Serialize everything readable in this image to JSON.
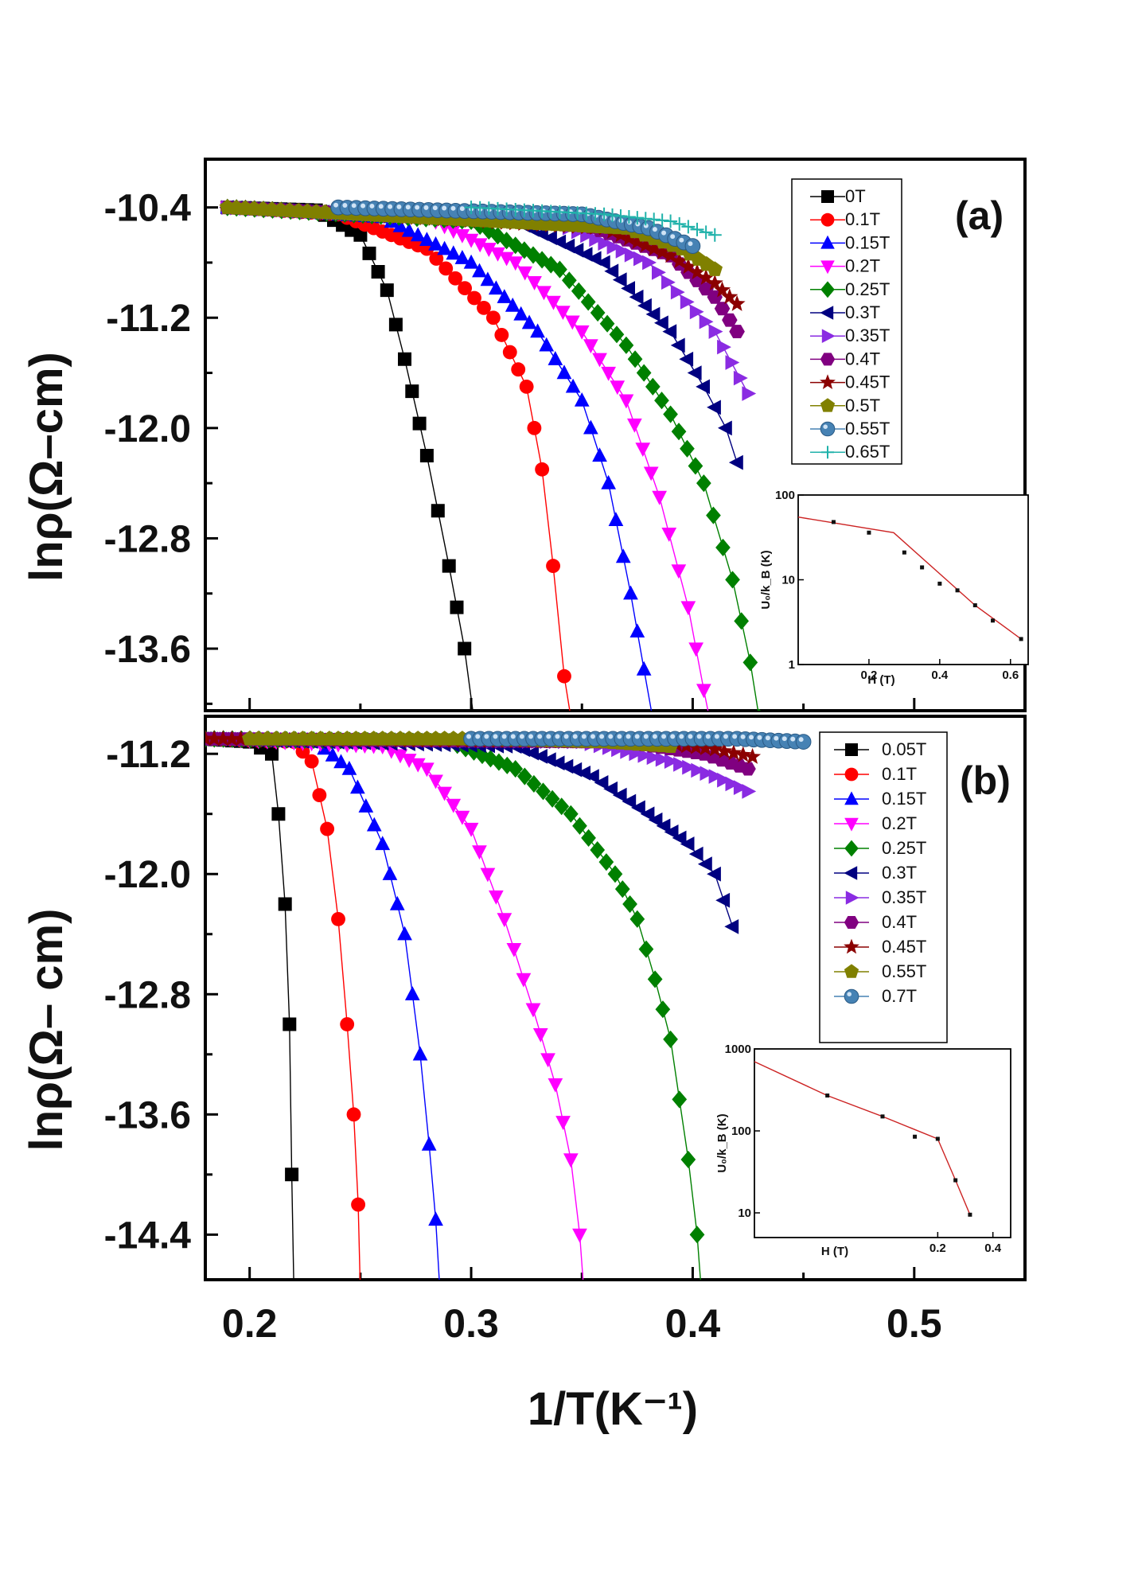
{
  "chart_data": [
    {
      "panel": "a",
      "type": "line",
      "panel_label": "(a)",
      "ylabel": "lnρ(Ω–cm)",
      "xlabel": "1/T(K⁻¹)",
      "xlim": [
        0.18,
        0.55
      ],
      "ylim": [
        -14.05,
        -10.05
      ],
      "yticks": [
        -10.4,
        -11.2,
        -12.0,
        -12.8,
        -13.6
      ],
      "ytick_labels": [
        "-10.4",
        "-11.2",
        "-12.0",
        "-12.8",
        "-13.6"
      ],
      "series": [
        {
          "name": "0T",
          "color": "#000000",
          "marker": "square",
          "knots": [
            [
              0.19,
              -10.4
            ],
            [
              0.23,
              -10.42
            ],
            [
              0.25,
              -10.6
            ],
            [
              0.262,
              -11.0
            ],
            [
              0.27,
              -11.5
            ],
            [
              0.28,
              -12.2
            ],
            [
              0.29,
              -13.0
            ],
            [
              0.297,
              -13.6
            ],
            [
              0.302,
              -14.2
            ]
          ]
        },
        {
          "name": "0.1T",
          "color": "#ff0000",
          "marker": "circle",
          "knots": [
            [
              0.19,
              -10.4
            ],
            [
              0.24,
              -10.45
            ],
            [
              0.28,
              -10.7
            ],
            [
              0.31,
              -11.2
            ],
            [
              0.325,
              -11.7
            ],
            [
              0.332,
              -12.3
            ],
            [
              0.337,
              -13.0
            ],
            [
              0.342,
              -13.8
            ],
            [
              0.347,
              -14.3
            ]
          ]
        },
        {
          "name": "0.15T",
          "color": "#0000ff",
          "marker": "triangle-up",
          "knots": [
            [
              0.19,
              -10.4
            ],
            [
              0.26,
              -10.47
            ],
            [
              0.3,
              -10.8
            ],
            [
              0.33,
              -11.3
            ],
            [
              0.35,
              -11.8
            ],
            [
              0.362,
              -12.4
            ],
            [
              0.372,
              -13.2
            ],
            [
              0.378,
              -13.75
            ],
            [
              0.383,
              -14.2
            ]
          ]
        },
        {
          "name": "0.2T",
          "color": "#ff00ff",
          "marker": "triangle-down",
          "knots": [
            [
              0.19,
              -10.4
            ],
            [
              0.28,
              -10.47
            ],
            [
              0.32,
              -10.8
            ],
            [
              0.35,
              -11.3
            ],
            [
              0.37,
              -11.8
            ],
            [
              0.385,
              -12.5
            ],
            [
              0.398,
              -13.3
            ],
            [
              0.405,
              -13.9
            ],
            [
              0.41,
              -14.3
            ]
          ]
        },
        {
          "name": "0.25T",
          "color": "#008000",
          "marker": "diamond",
          "knots": [
            [
              0.19,
              -10.4
            ],
            [
              0.3,
              -10.5
            ],
            [
              0.34,
              -10.85
            ],
            [
              0.37,
              -11.4
            ],
            [
              0.39,
              -11.9
            ],
            [
              0.405,
              -12.4
            ],
            [
              0.418,
              -13.1
            ],
            [
              0.426,
              -13.7
            ],
            [
              0.43,
              -14.1
            ]
          ]
        },
        {
          "name": "0.3T",
          "color": "#000080",
          "marker": "triangle-left",
          "knots": [
            [
              0.19,
              -10.4
            ],
            [
              0.32,
              -10.5
            ],
            [
              0.36,
              -10.8
            ],
            [
              0.39,
              -11.3
            ],
            [
              0.405,
              -11.7
            ],
            [
              0.415,
              -12.0
            ],
            [
              0.42,
              -12.25
            ]
          ]
        },
        {
          "name": "0.35T",
          "color": "#8a2be2",
          "marker": "triangle-right",
          "knots": [
            [
              0.19,
              -10.4
            ],
            [
              0.34,
              -10.52
            ],
            [
              0.38,
              -10.8
            ],
            [
              0.41,
              -11.3
            ],
            [
              0.425,
              -11.75
            ]
          ]
        },
        {
          "name": "0.4T",
          "color": "#800080",
          "marker": "hexagon",
          "knots": [
            [
              0.19,
              -10.4
            ],
            [
              0.35,
              -10.52
            ],
            [
              0.39,
              -10.75
            ],
            [
              0.41,
              -11.05
            ],
            [
              0.42,
              -11.3
            ]
          ]
        },
        {
          "name": "0.45T",
          "color": "#8b0000",
          "marker": "star",
          "knots": [
            [
              0.19,
              -10.4
            ],
            [
              0.36,
              -10.55
            ],
            [
              0.39,
              -10.75
            ],
            [
              0.41,
              -10.95
            ],
            [
              0.42,
              -11.1
            ]
          ]
        },
        {
          "name": "0.5T",
          "color": "#808000",
          "marker": "pentagon",
          "knots": [
            [
              0.19,
              -10.4
            ],
            [
              0.37,
              -10.55
            ],
            [
              0.395,
              -10.7
            ],
            [
              0.41,
              -10.85
            ]
          ]
        },
        {
          "name": "0.55T",
          "color": "#4682b4",
          "marker": "sphere",
          "knots": [
            [
              0.24,
              -10.4
            ],
            [
              0.35,
              -10.45
            ],
            [
              0.38,
              -10.55
            ],
            [
              0.4,
              -10.68
            ]
          ]
        },
        {
          "name": "0.65T",
          "color": "#20b2aa",
          "marker": "plus",
          "knots": [
            [
              0.3,
              -10.4
            ],
            [
              0.36,
              -10.45
            ],
            [
              0.39,
              -10.5
            ],
            [
              0.41,
              -10.6
            ]
          ]
        }
      ],
      "inset": {
        "type": "line",
        "xlabel": "H (T)",
        "ylabel": "U₀/k_B (K)",
        "xscale": "linear",
        "yscale": "log",
        "xlim": [
          0.0,
          0.65
        ],
        "ylim": [
          1,
          100
        ],
        "xticks": [
          0.2,
          0.4,
          0.6
        ],
        "xtick_labels": [
          "0.2",
          "0.4",
          "0.6"
        ],
        "yticks": [
          1,
          10,
          100
        ],
        "ytick_labels": [
          "1",
          "10",
          "100"
        ],
        "points": [
          [
            0.1,
            48
          ],
          [
            0.2,
            36
          ],
          [
            0.3,
            21
          ],
          [
            0.35,
            14
          ],
          [
            0.4,
            9
          ],
          [
            0.45,
            7.5
          ],
          [
            0.5,
            5
          ],
          [
            0.55,
            3.3
          ],
          [
            0.63,
            2
          ]
        ],
        "fit": [
          [
            0.0,
            55
          ],
          [
            0.27,
            36
          ],
          [
            0.5,
            5
          ],
          [
            0.63,
            2
          ]
        ]
      }
    },
    {
      "panel": "b",
      "type": "line",
      "panel_label": "(b)",
      "ylabel": "lnρ(Ω– cm)",
      "xlabel": "1/T(K⁻¹)",
      "xlim": [
        0.18,
        0.55
      ],
      "ylim": [
        -14.7,
        -10.95
      ],
      "yticks": [
        -11.2,
        -12.0,
        -12.8,
        -13.6,
        -14.4
      ],
      "ytick_labels": [
        "-11.2",
        "-12.0",
        "-12.8",
        "-13.6",
        "-14.4"
      ],
      "xticks": [
        0.2,
        0.3,
        0.4,
        0.5
      ],
      "xtick_labels": [
        "0.2",
        "0.3",
        "0.4",
        "0.5"
      ],
      "series": [
        {
          "name": "0.05T",
          "color": "#000000",
          "marker": "square",
          "knots": [
            [
              0.18,
              -11.1
            ],
            [
              0.2,
              -11.12
            ],
            [
              0.21,
              -11.2
            ],
            [
              0.213,
              -11.6
            ],
            [
              0.216,
              -12.2
            ],
            [
              0.218,
              -13.0
            ],
            [
              0.219,
              -14.0
            ],
            [
              0.22,
              -14.8
            ]
          ]
        },
        {
          "name": "0.1T",
          "color": "#ff0000",
          "marker": "circle",
          "knots": [
            [
              0.18,
              -11.1
            ],
            [
              0.22,
              -11.12
            ],
            [
              0.228,
              -11.25
            ],
            [
              0.235,
              -11.7
            ],
            [
              0.24,
              -12.3
            ],
            [
              0.244,
              -13.0
            ],
            [
              0.247,
              -13.6
            ],
            [
              0.249,
              -14.2
            ],
            [
              0.25,
              -14.8
            ]
          ]
        },
        {
          "name": "0.15T",
          "color": "#0000ff",
          "marker": "triangle-up",
          "knots": [
            [
              0.18,
              -11.1
            ],
            [
              0.23,
              -11.12
            ],
            [
              0.245,
              -11.3
            ],
            [
              0.26,
              -11.8
            ],
            [
              0.27,
              -12.4
            ],
            [
              0.277,
              -13.2
            ],
            [
              0.281,
              -13.8
            ],
            [
              0.284,
              -14.3
            ],
            [
              0.286,
              -14.8
            ]
          ]
        },
        {
          "name": "0.2T",
          "color": "#ff00ff",
          "marker": "triangle-down",
          "knots": [
            [
              0.18,
              -11.1
            ],
            [
              0.26,
              -11.15
            ],
            [
              0.28,
              -11.3
            ],
            [
              0.3,
              -11.7
            ],
            [
              0.315,
              -12.3
            ],
            [
              0.328,
              -12.9
            ],
            [
              0.338,
              -13.4
            ],
            [
              0.345,
              -13.9
            ],
            [
              0.349,
              -14.4
            ],
            [
              0.351,
              -14.8
            ]
          ]
        },
        {
          "name": "0.25T",
          "color": "#008000",
          "marker": "diamond",
          "knots": [
            [
              0.18,
              -11.1
            ],
            [
              0.29,
              -11.12
            ],
            [
              0.32,
              -11.3
            ],
            [
              0.345,
              -11.6
            ],
            [
              0.365,
              -12.0
            ],
            [
              0.375,
              -12.3
            ],
            [
              0.383,
              -12.7
            ],
            [
              0.39,
              -13.1
            ],
            [
              0.398,
              -13.9
            ],
            [
              0.402,
              -14.4
            ],
            [
              0.404,
              -14.8
            ]
          ]
        },
        {
          "name": "0.3T",
          "color": "#000080",
          "marker": "triangle-left",
          "knots": [
            [
              0.18,
              -11.1
            ],
            [
              0.32,
              -11.15
            ],
            [
              0.355,
              -11.35
            ],
            [
              0.38,
              -11.6
            ],
            [
              0.398,
              -11.8
            ],
            [
              0.41,
              -12.0
            ],
            [
              0.418,
              -12.35
            ]
          ]
        },
        {
          "name": "0.35T",
          "color": "#8a2be2",
          "marker": "triangle-right",
          "knots": [
            [
              0.18,
              -11.1
            ],
            [
              0.35,
              -11.12
            ],
            [
              0.39,
              -11.25
            ],
            [
              0.41,
              -11.35
            ],
            [
              0.425,
              -11.45
            ]
          ]
        },
        {
          "name": "0.4T",
          "color": "#800080",
          "marker": "hexagon",
          "knots": [
            [
              0.18,
              -11.1
            ],
            [
              0.37,
              -11.12
            ],
            [
              0.405,
              -11.2
            ],
            [
              0.425,
              -11.3
            ]
          ]
        },
        {
          "name": "0.45T",
          "color": "#8b0000",
          "marker": "star",
          "knots": [
            [
              0.18,
              -11.1
            ],
            [
              0.38,
              -11.12
            ],
            [
              0.41,
              -11.17
            ],
            [
              0.427,
              -11.22
            ]
          ]
        },
        {
          "name": "0.55T",
          "color": "#808000",
          "marker": "pentagon",
          "knots": [
            [
              0.2,
              -11.1
            ],
            [
              0.3,
              -11.1
            ],
            [
              0.36,
              -11.12
            ],
            [
              0.39,
              -11.15
            ]
          ]
        },
        {
          "name": "0.7T",
          "color": "#4682b4",
          "marker": "sphere",
          "knots": [
            [
              0.3,
              -11.1
            ],
            [
              0.38,
              -11.1
            ],
            [
              0.42,
              -11.1
            ],
            [
              0.45,
              -11.12
            ]
          ]
        }
      ],
      "inset": {
        "type": "line",
        "xlabel": "H (T)",
        "ylabel": "U₀/k_B (K)",
        "xscale": "log",
        "yscale": "log",
        "xlim": [
          0.02,
          0.5
        ],
        "ylim": [
          5,
          1000
        ],
        "xticks": [
          0.2,
          0.4
        ],
        "xtick_labels": [
          "0.2",
          "0.4"
        ],
        "yticks": [
          10,
          100,
          1000
        ],
        "ytick_labels": [
          "10",
          "100",
          "1000"
        ],
        "points": [
          [
            0.05,
            270
          ],
          [
            0.1,
            150
          ],
          [
            0.15,
            85
          ],
          [
            0.2,
            80
          ],
          [
            0.25,
            25
          ],
          [
            0.3,
            9.5
          ]
        ],
        "fit": [
          [
            0.02,
            700
          ],
          [
            0.05,
            270
          ],
          [
            0.1,
            150
          ],
          [
            0.2,
            80
          ],
          [
            0.25,
            25
          ],
          [
            0.3,
            9.5
          ]
        ]
      }
    }
  ]
}
